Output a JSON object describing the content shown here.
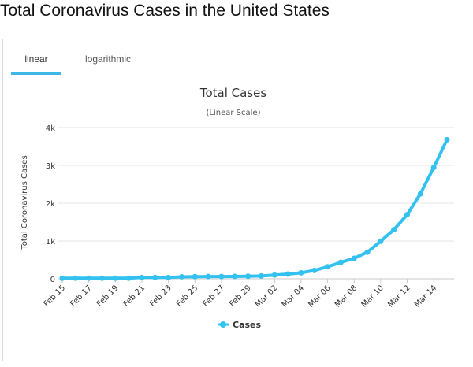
{
  "page": {
    "title": "Total Coronavirus Cases in the United States"
  },
  "tabs": [
    {
      "label": "linear",
      "active": true
    },
    {
      "label": "logarithmic",
      "active": false
    }
  ],
  "colors": {
    "series": "#33c1f0",
    "active_tab_underline": "#3fb8e8",
    "grid": "#e6e6e6"
  },
  "chart_data": {
    "type": "line",
    "title": "Total Cases",
    "subtitle": "(Linear Scale)",
    "ylabel": "Total Coronavirus Cases",
    "xlabel": "",
    "ylim": [
      0,
      4000
    ],
    "y_ticks": [
      0,
      1000,
      2000,
      3000,
      4000
    ],
    "y_tick_labels": [
      "0",
      "1k",
      "2k",
      "3k",
      "4k"
    ],
    "x_tick_labels": [
      "Feb 15",
      "Feb 17",
      "Feb 19",
      "Feb 21",
      "Feb 23",
      "Feb 25",
      "Feb 27",
      "Feb 29",
      "Mar 02",
      "Mar 04",
      "Mar 06",
      "Mar 08",
      "Mar 10",
      "Mar 12",
      "Mar 14"
    ],
    "grid": true,
    "legend_position": "bottom-center",
    "categories": [
      "Feb 15",
      "Feb 16",
      "Feb 17",
      "Feb 18",
      "Feb 19",
      "Feb 20",
      "Feb 21",
      "Feb 22",
      "Feb 23",
      "Feb 24",
      "Feb 25",
      "Feb 26",
      "Feb 27",
      "Feb 28",
      "Feb 29",
      "Mar 01",
      "Mar 02",
      "Mar 03",
      "Mar 04",
      "Mar 05",
      "Mar 06",
      "Mar 07",
      "Mar 08",
      "Mar 09",
      "Mar 10",
      "Mar 11",
      "Mar 12",
      "Mar 13",
      "Mar 14",
      "Mar 15"
    ],
    "series": [
      {
        "name": "Cases",
        "values": [
          15,
          15,
          15,
          15,
          15,
          15,
          35,
          35,
          35,
          53,
          57,
          60,
          60,
          62,
          68,
          75,
          100,
          124,
          158,
          221,
          319,
          435,
          541,
          704,
          994,
          1301,
          1697,
          2247,
          2943,
          3680
        ]
      }
    ]
  }
}
